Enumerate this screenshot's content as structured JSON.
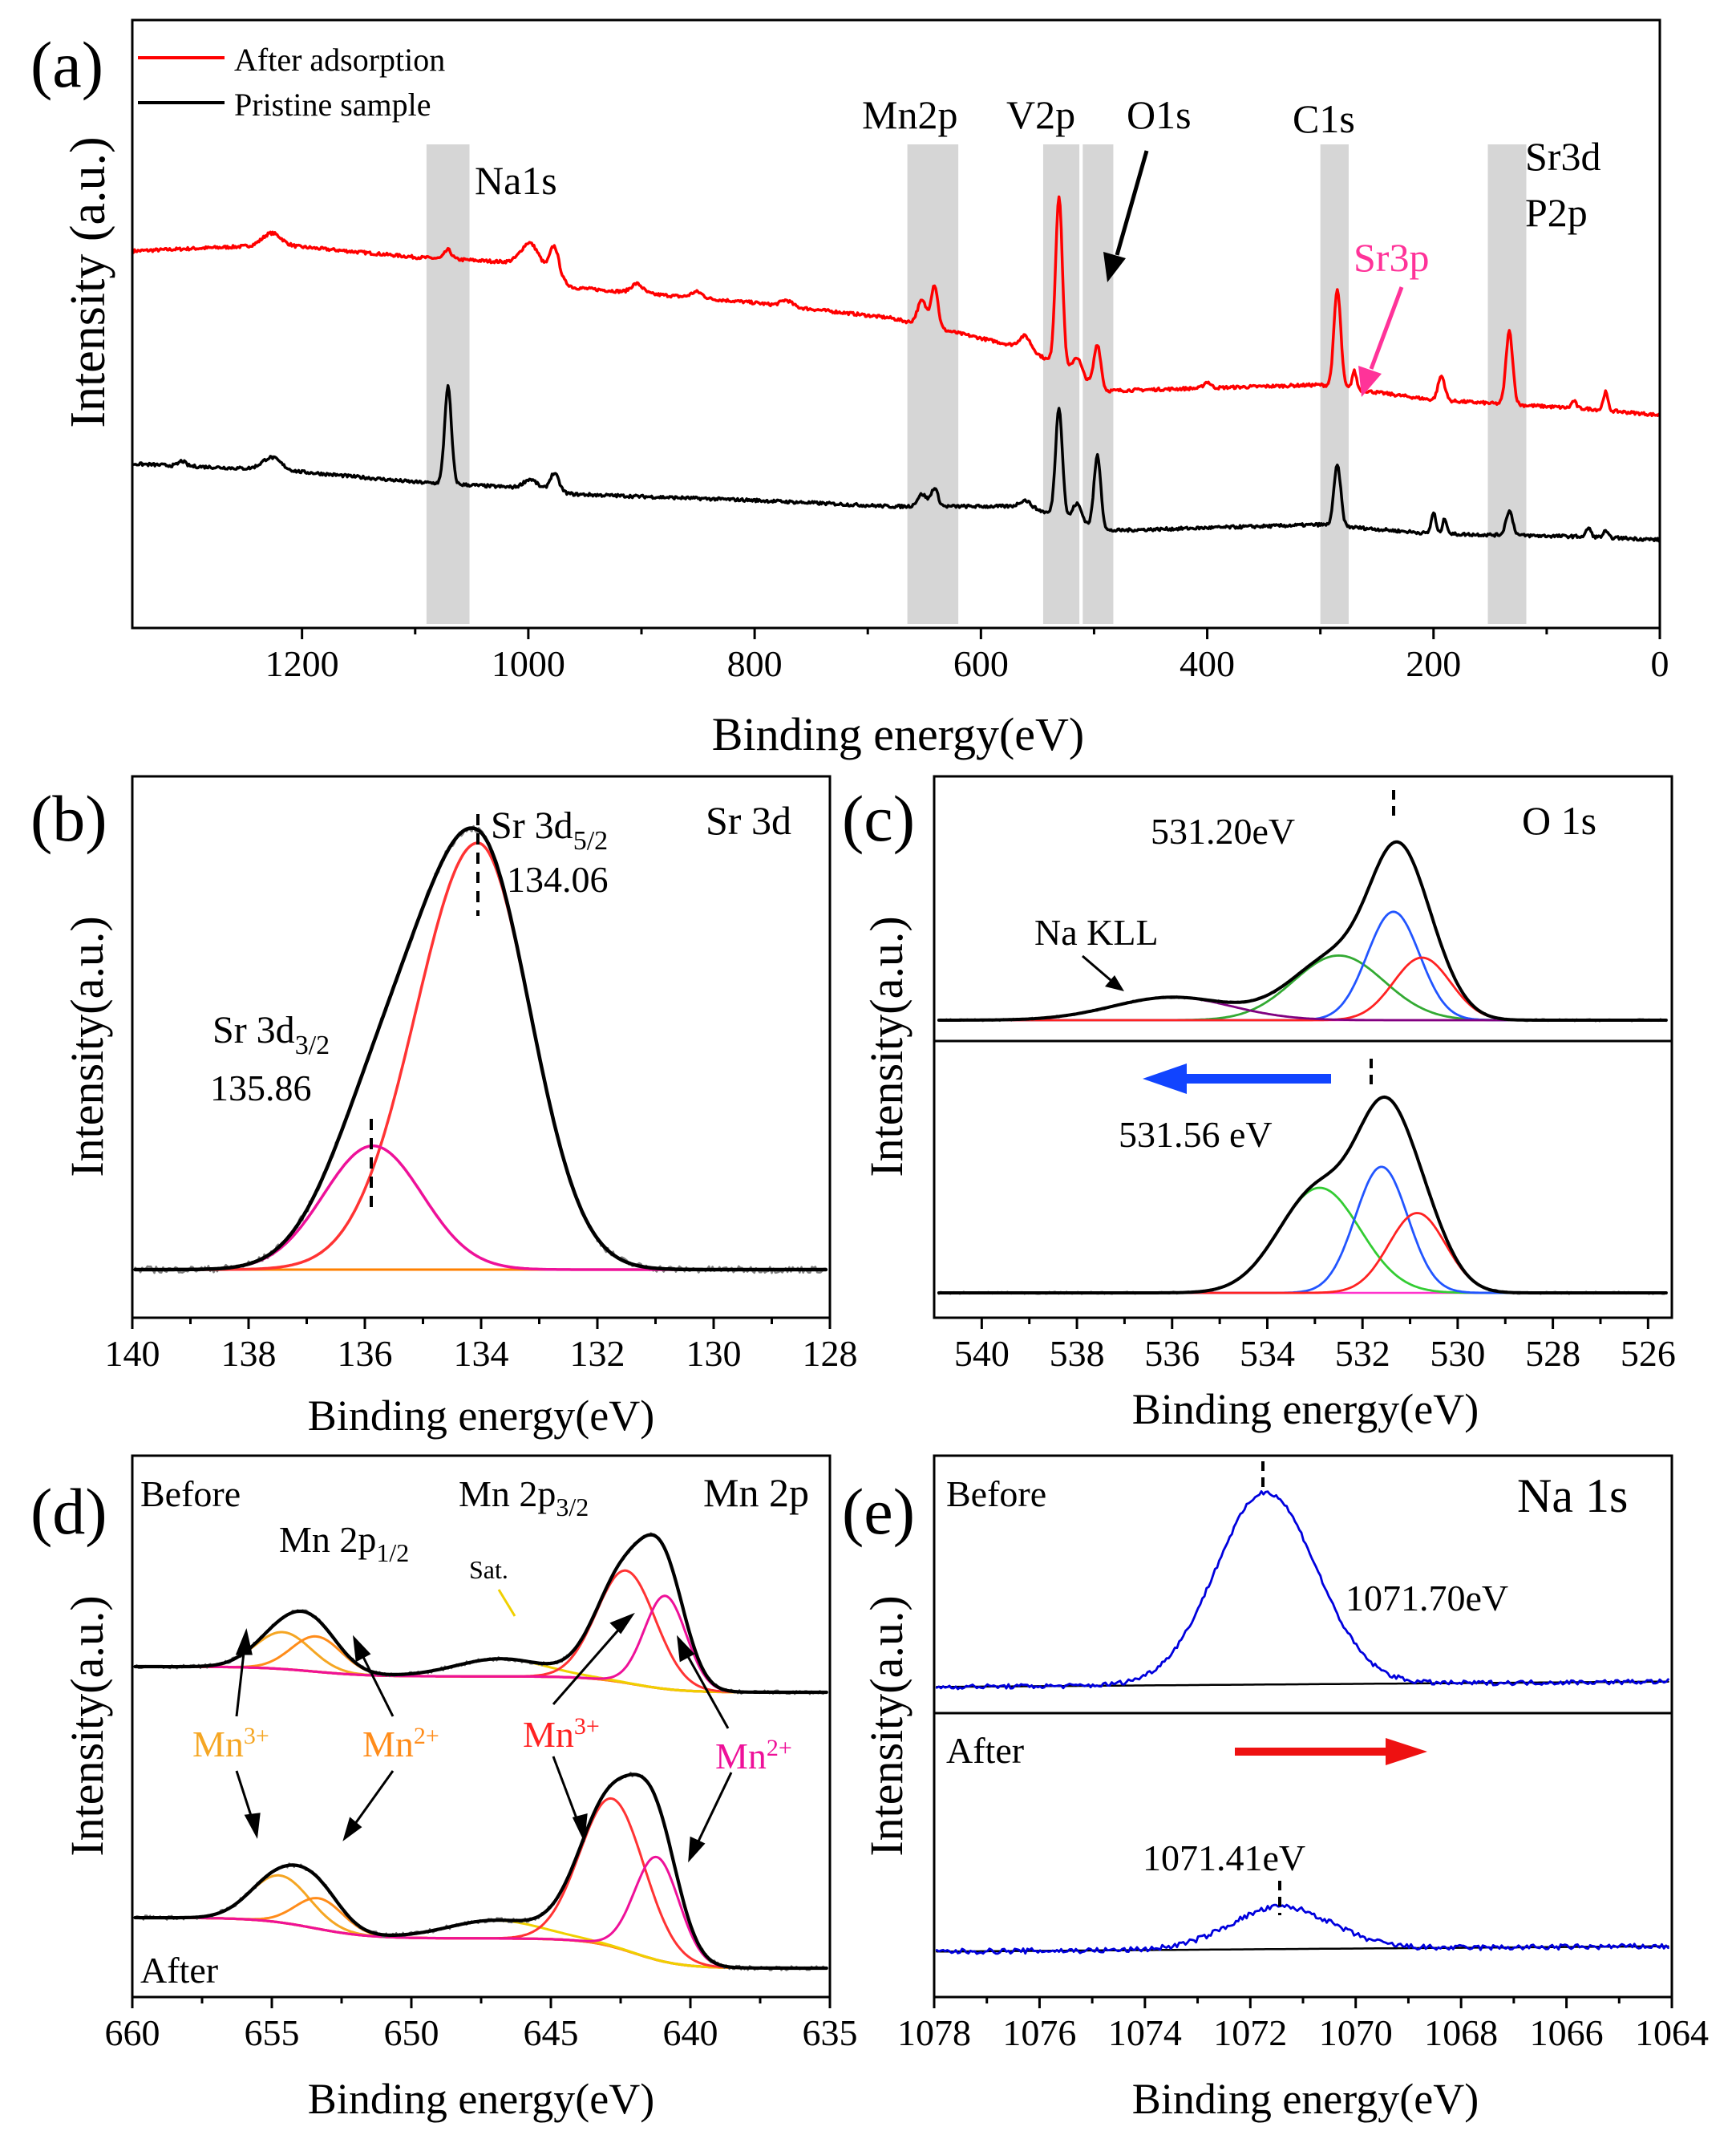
{
  "figure": {
    "panel_labels": [
      "(a)",
      "(b)",
      "(c)",
      "(d)",
      "(e)"
    ],
    "common_ylabel": "Intensity (a.u.)",
    "common_ylabel_compact": "Intensity(a.u.)",
    "common_xlabel": "Binding energy(eV)"
  },
  "chart_data": [
    {
      "panel": "(a)",
      "type": "line",
      "title": "",
      "xlabel": "Binding energy(eV)",
      "ylabel": "Intensity (a.u.)",
      "xlim": [
        1350,
        0
      ],
      "xticks": [
        1200,
        1000,
        800,
        600,
        400,
        200,
        0
      ],
      "legend": {
        "position": "top-left",
        "entries": [
          {
            "label": "After adsorption",
            "color": "#ff0000"
          },
          {
            "label": "Pristine sample",
            "color": "#000000"
          }
        ]
      },
      "series": [
        {
          "name": "After adsorption",
          "color": "#ff0000",
          "baseline": [
            [
              1350,
              0.62
            ],
            [
              1220,
              0.63
            ],
            [
              1100,
              0.61
            ],
            [
              1000,
              0.6
            ],
            [
              960,
              0.56
            ],
            [
              800,
              0.535
            ],
            [
              680,
              0.51
            ],
            [
              560,
              0.46
            ],
            [
              490,
              0.39
            ],
            [
              300,
              0.4
            ],
            [
              200,
              0.375
            ],
            [
              60,
              0.36
            ],
            [
              0,
              0.35
            ]
          ],
          "peaks": [
            [
              1227,
              0.02,
              8
            ],
            [
              1071,
              0.015,
              3
            ],
            [
              998,
              0.035,
              8
            ],
            [
              977,
              0.05,
              4
            ],
            [
              904,
              0.015,
              5
            ],
            [
              851,
              0.01,
              5
            ],
            [
              772,
              0.01,
              5
            ],
            [
              652,
              0.04,
              4
            ],
            [
              641,
              0.07,
              3
            ],
            [
              561,
              0.02,
              5
            ],
            [
              531,
              0.28,
              3
            ],
            [
              515,
              0.03,
              4
            ],
            [
              497,
              0.07,
              3
            ],
            [
              400,
              0.01,
              3
            ],
            [
              285,
              0.16,
              3
            ],
            [
              270,
              0.03,
              2
            ],
            [
              193,
              0.04,
              3
            ],
            [
              133,
              0.12,
              3
            ],
            [
              76,
              0.012,
              2
            ],
            [
              48,
              0.03,
              2
            ]
          ]
        },
        {
          "name": "Pristine sample",
          "color": "#000000",
          "baseline": [
            [
              1350,
              0.27
            ],
            [
              1220,
              0.26
            ],
            [
              1100,
              0.24
            ],
            [
              1000,
              0.23
            ],
            [
              960,
              0.22
            ],
            [
              800,
              0.21
            ],
            [
              680,
              0.2
            ],
            [
              560,
              0.2
            ],
            [
              490,
              0.16
            ],
            [
              300,
              0.17
            ],
            [
              200,
              0.155
            ],
            [
              60,
              0.15
            ],
            [
              0,
              0.145
            ]
          ],
          "peaks": [
            [
              1306,
              0.008,
              3
            ],
            [
              1227,
              0.02,
              8
            ],
            [
              1071,
              0.16,
              3
            ],
            [
              998,
              0.015,
              6
            ],
            [
              977,
              0.03,
              4
            ],
            [
              652,
              0.02,
              4
            ],
            [
              641,
              0.03,
              3
            ],
            [
              561,
              0.01,
              5
            ],
            [
              531,
              0.18,
              3
            ],
            [
              515,
              0.03,
              4
            ],
            [
              497,
              0.12,
              3
            ],
            [
              285,
              0.1,
              3
            ],
            [
              200,
              0.035,
              2
            ],
            [
              190,
              0.025,
              2
            ],
            [
              133,
              0.04,
              3
            ],
            [
              63,
              0.015,
              2
            ],
            [
              48,
              0.01,
              2
            ]
          ]
        }
      ],
      "bands": [
        {
          "label": "Na1s",
          "range": [
            1090,
            1052
          ]
        },
        {
          "label": "Mn2p",
          "range": [
            665,
            620
          ]
        },
        {
          "label": "V2p",
          "range": [
            545,
            513
          ]
        },
        {
          "label": "O1s",
          "range": [
            510,
            483
          ]
        },
        {
          "label": "C1s",
          "range": [
            300,
            275
          ]
        },
        {
          "label": "Sr3d P2p",
          "range": [
            152,
            118
          ]
        }
      ],
      "annotations": [
        {
          "text": "Na1s"
        },
        {
          "text": "Mn2p"
        },
        {
          "text": "V2p"
        },
        {
          "text": "O1s"
        },
        {
          "text": "C1s"
        },
        {
          "text": "Sr3d"
        },
        {
          "text": "P2p"
        },
        {
          "text": "Sr3p",
          "color": "#ff3399"
        }
      ]
    },
    {
      "panel": "(b)",
      "type": "line",
      "title": "Sr 3d",
      "xlabel": "Binding energy(eV)",
      "ylabel": "Intensity(a.u.)",
      "xlim": [
        140,
        128
      ],
      "xticks": [
        140,
        138,
        136,
        134,
        132,
        130,
        128
      ],
      "peaks": [
        {
          "name": "Sr 3d5/2",
          "position": 134.06,
          "height": 1.0,
          "width": 0.9,
          "color": "#ff3333"
        },
        {
          "name": "Sr 3d3/2",
          "position": 135.86,
          "height": 0.29,
          "width": 0.85,
          "color": "#ee1199"
        }
      ],
      "background": {
        "color": "#ff8000",
        "value": 0.0
      },
      "envelope_color": "#000000",
      "raw_color": "#808080",
      "labels": {
        "sr3d52_main": "Sr 3d",
        "sr3d52_sub": "5/2",
        "sr3d52_value": "134.06",
        "sr3d32_main": "Sr 3d",
        "sr3d32_sub": "3/2",
        "sr3d32_value": "135.86"
      }
    },
    {
      "panel": "(c)",
      "type": "line",
      "title": "O 1s",
      "xlabel": "Binding energy(eV)",
      "ylabel": "Intensity(a.u.)",
      "xlim": [
        541,
        525.5
      ],
      "xticks": [
        540,
        538,
        536,
        534,
        532,
        530,
        528,
        526
      ],
      "upper": {
        "envelope_peak": 531.2,
        "label": "531.20eV",
        "components": [
          {
            "position": 532.5,
            "height": 0.31,
            "width": 0.95,
            "color": "#33aa33"
          },
          {
            "position": 531.35,
            "height": 0.52,
            "width": 0.55,
            "color": "#2255ff"
          },
          {
            "position": 530.75,
            "height": 0.3,
            "width": 0.6,
            "color": "#ff2222"
          },
          {
            "position": 536.0,
            "height": 0.11,
            "width": 1.25,
            "color": "#800080"
          }
        ],
        "annotation": "Na KLL"
      },
      "lower": {
        "envelope_peak": 531.56,
        "label": "531.56 eV",
        "components": [
          {
            "position": 532.9,
            "height": 0.5,
            "width": 0.85,
            "color": "#33cc33"
          },
          {
            "position": 531.6,
            "height": 0.6,
            "width": 0.55,
            "color": "#2255ff"
          },
          {
            "position": 530.85,
            "height": 0.38,
            "width": 0.6,
            "color": "#ff2222"
          }
        ]
      },
      "shift_arrow_color": "#1144ff"
    },
    {
      "panel": "(d)",
      "type": "line",
      "title": "Mn 2p",
      "xlabel": "Binding energy(eV)",
      "ylabel": "Intensity(a.u.)",
      "xlim": [
        660,
        635
      ],
      "xticks": [
        660,
        655,
        650,
        645,
        640,
        635
      ],
      "before": {
        "label": "Before",
        "components": [
          {
            "position": 654.6,
            "height": 0.23,
            "width": 1.0,
            "color": "#f5a623"
          },
          {
            "position": 653.4,
            "height": 0.22,
            "width": 0.9,
            "color": "#ff8c1a"
          },
          {
            "position": 646.8,
            "height": 0.11,
            "width": 1.6,
            "color": "#f0d000"
          },
          {
            "position": 642.3,
            "height": 0.7,
            "width": 1.05,
            "color": "#ff3333"
          },
          {
            "position": 640.9,
            "height": 0.58,
            "width": 0.75,
            "color": "#ee1199"
          }
        ]
      },
      "after": {
        "label": "After",
        "components": [
          {
            "position": 654.7,
            "height": 0.26,
            "width": 1.05,
            "color": "#f5a623"
          },
          {
            "position": 653.3,
            "height": 0.17,
            "width": 0.85,
            "color": "#ff8c1a"
          },
          {
            "position": 647.0,
            "height": 0.1,
            "width": 1.7,
            "color": "#f0d000"
          },
          {
            "position": 642.8,
            "height": 0.82,
            "width": 1.15,
            "color": "#ff3333"
          },
          {
            "position": 641.2,
            "height": 0.57,
            "width": 0.8,
            "color": "#ee1199"
          }
        ]
      },
      "labels": {
        "mn2p12_main": "Mn 2p",
        "mn2p12_sub": "1/2",
        "mn2p32_main": "Mn 2p",
        "mn2p32_sub": "3/2",
        "sat": "Sat.",
        "mn3_left": "Mn",
        "mn2_left": "Mn",
        "mn3_right": "Mn",
        "mn2_right": "Mn",
        "sup3": "3+",
        "sup2": "2+"
      }
    },
    {
      "panel": "(e)",
      "type": "line",
      "title": "Na 1s",
      "xlabel": "Binding energy(eV)",
      "ylabel": "Intensity(a.u.)",
      "xlim": [
        1078,
        1064
      ],
      "xticks": [
        1078,
        1076,
        1074,
        1072,
        1070,
        1068,
        1066,
        1064
      ],
      "before": {
        "label": "Before",
        "position": 1071.7,
        "height": 1.0,
        "width": 0.95,
        "value_label": "1071.70eV",
        "color": "#0000dd"
      },
      "after": {
        "label": "After",
        "position": 1071.41,
        "height": 0.22,
        "width": 0.95,
        "value_label": "1071.41eV",
        "color": "#0000dd"
      },
      "shift_arrow_color": "#ee1111"
    }
  ]
}
